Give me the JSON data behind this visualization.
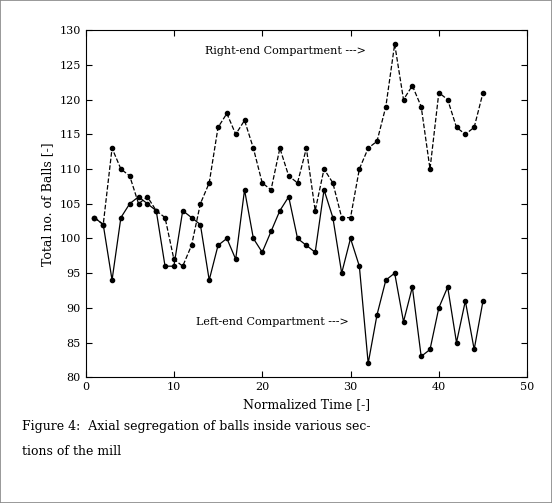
{
  "title": "",
  "xlabel": "Normalized Time [-]",
  "ylabel": "Total no. of Balls [-]",
  "xlim": [
    0,
    50
  ],
  "ylim": [
    80,
    130
  ],
  "xticks": [
    0,
    10,
    20,
    30,
    40,
    50
  ],
  "yticks": [
    80,
    85,
    90,
    95,
    100,
    105,
    110,
    115,
    120,
    125,
    130
  ],
  "right_end_label": "Right-end Compartment --->",
  "left_end_label": "Left-end Compartment --->",
  "right_x": [
    1,
    2,
    3,
    4,
    5,
    6,
    7,
    8,
    9,
    10,
    11,
    12,
    13,
    14,
    15,
    16,
    17,
    18,
    19,
    20,
    21,
    22,
    23,
    24,
    25,
    26,
    27,
    28,
    29,
    30,
    31,
    32,
    33,
    34,
    35,
    36,
    37,
    38,
    39,
    40,
    41,
    42,
    43,
    44,
    45
  ],
  "right_y": [
    103,
    102,
    113,
    110,
    109,
    105,
    106,
    104,
    103,
    97,
    96,
    99,
    105,
    108,
    116,
    118,
    115,
    117,
    113,
    108,
    107,
    113,
    109,
    108,
    113,
    104,
    110,
    108,
    103,
    103,
    110,
    113,
    114,
    119,
    128,
    120,
    122,
    119,
    110,
    121,
    120,
    116,
    115,
    116,
    121
  ],
  "left_x": [
    1,
    2,
    3,
    4,
    5,
    6,
    7,
    8,
    9,
    10,
    11,
    12,
    13,
    14,
    15,
    16,
    17,
    18,
    19,
    20,
    21,
    22,
    23,
    24,
    25,
    26,
    27,
    28,
    29,
    30,
    31,
    32,
    33,
    34,
    35,
    36,
    37,
    38,
    39,
    40,
    41,
    42,
    43,
    44,
    45
  ],
  "left_y": [
    103,
    102,
    94,
    103,
    105,
    106,
    105,
    104,
    96,
    96,
    104,
    103,
    102,
    94,
    99,
    100,
    97,
    107,
    100,
    98,
    101,
    104,
    106,
    100,
    99,
    98,
    107,
    103,
    95,
    100,
    96,
    82,
    89,
    94,
    95,
    88,
    93,
    83,
    84,
    90,
    93,
    85,
    91,
    84,
    91
  ],
  "line_color": "#000000",
  "background_color": "#ffffff",
  "outer_bg": "#d3d3d3",
  "caption_line1": "Figure 4:  Axial segregation of balls inside various sec-",
  "caption_line2": "tions of the mill"
}
